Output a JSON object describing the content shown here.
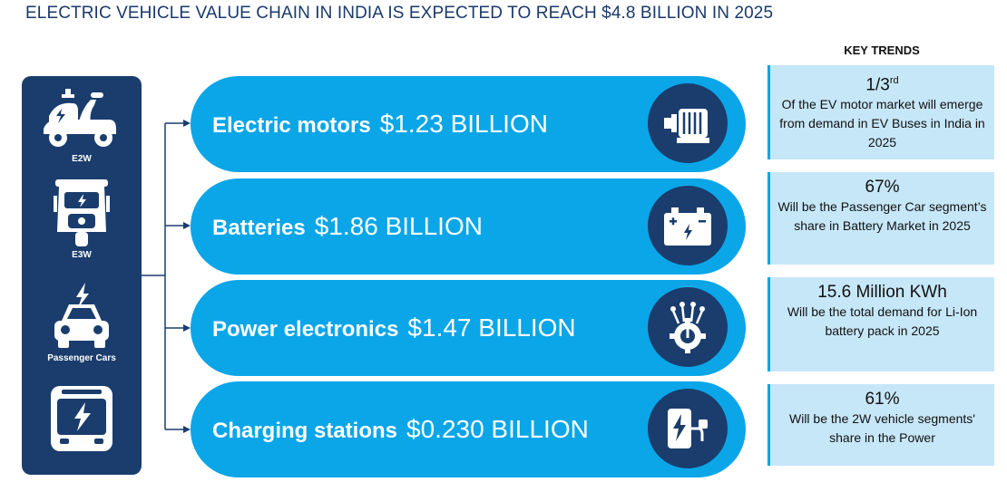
{
  "title": "ELECTRIC VEHICLE VALUE CHAIN IN INDIA IS EXPECTED TO REACH  $4.8 BILLION IN 2025",
  "vehicles": [
    {
      "label": "E2W",
      "icon": "scooter-icon"
    },
    {
      "label": "E3W",
      "icon": "auto-rickshaw-icon"
    },
    {
      "label": "Passenger Cars",
      "icon": "car-icon"
    },
    {
      "label": "",
      "icon": "bus-icon"
    }
  ],
  "segments": [
    {
      "name": "Electric motors",
      "value": "$1.23 BILLION",
      "icon": "motor-icon"
    },
    {
      "name": "Batteries",
      "value": "$1.86 BILLION",
      "icon": "battery-icon"
    },
    {
      "name": "Power electronics",
      "value": "$1.47 BILLION",
      "icon": "circuit-gear-icon"
    },
    {
      "name": "Charging stations",
      "value": "$0.230 BILLION",
      "icon": "charging-station-icon"
    }
  ],
  "trends": {
    "heading": "KEY TRENDS",
    "items": [
      {
        "value": "1/3",
        "sup": "rd",
        "text": "Of the EV motor market will emerge from demand in EV Buses in India in 2025"
      },
      {
        "value": "67%",
        "sup": "",
        "text": "Will be the Passenger Car segment’s share in Battery Market in 2025"
      },
      {
        "value": "15.6 Million KWh",
        "sup": "",
        "text": "Will be the total demand for Li-Ion battery pack in 2025"
      },
      {
        "value": "61%",
        "sup": "",
        "text": "Will be the 2W vehicle segments' share in the Power"
      }
    ]
  },
  "colors": {
    "navy": "#1a3d6d",
    "accent": "#0aa6e8",
    "trend_bg": "#c6e7f8"
  }
}
